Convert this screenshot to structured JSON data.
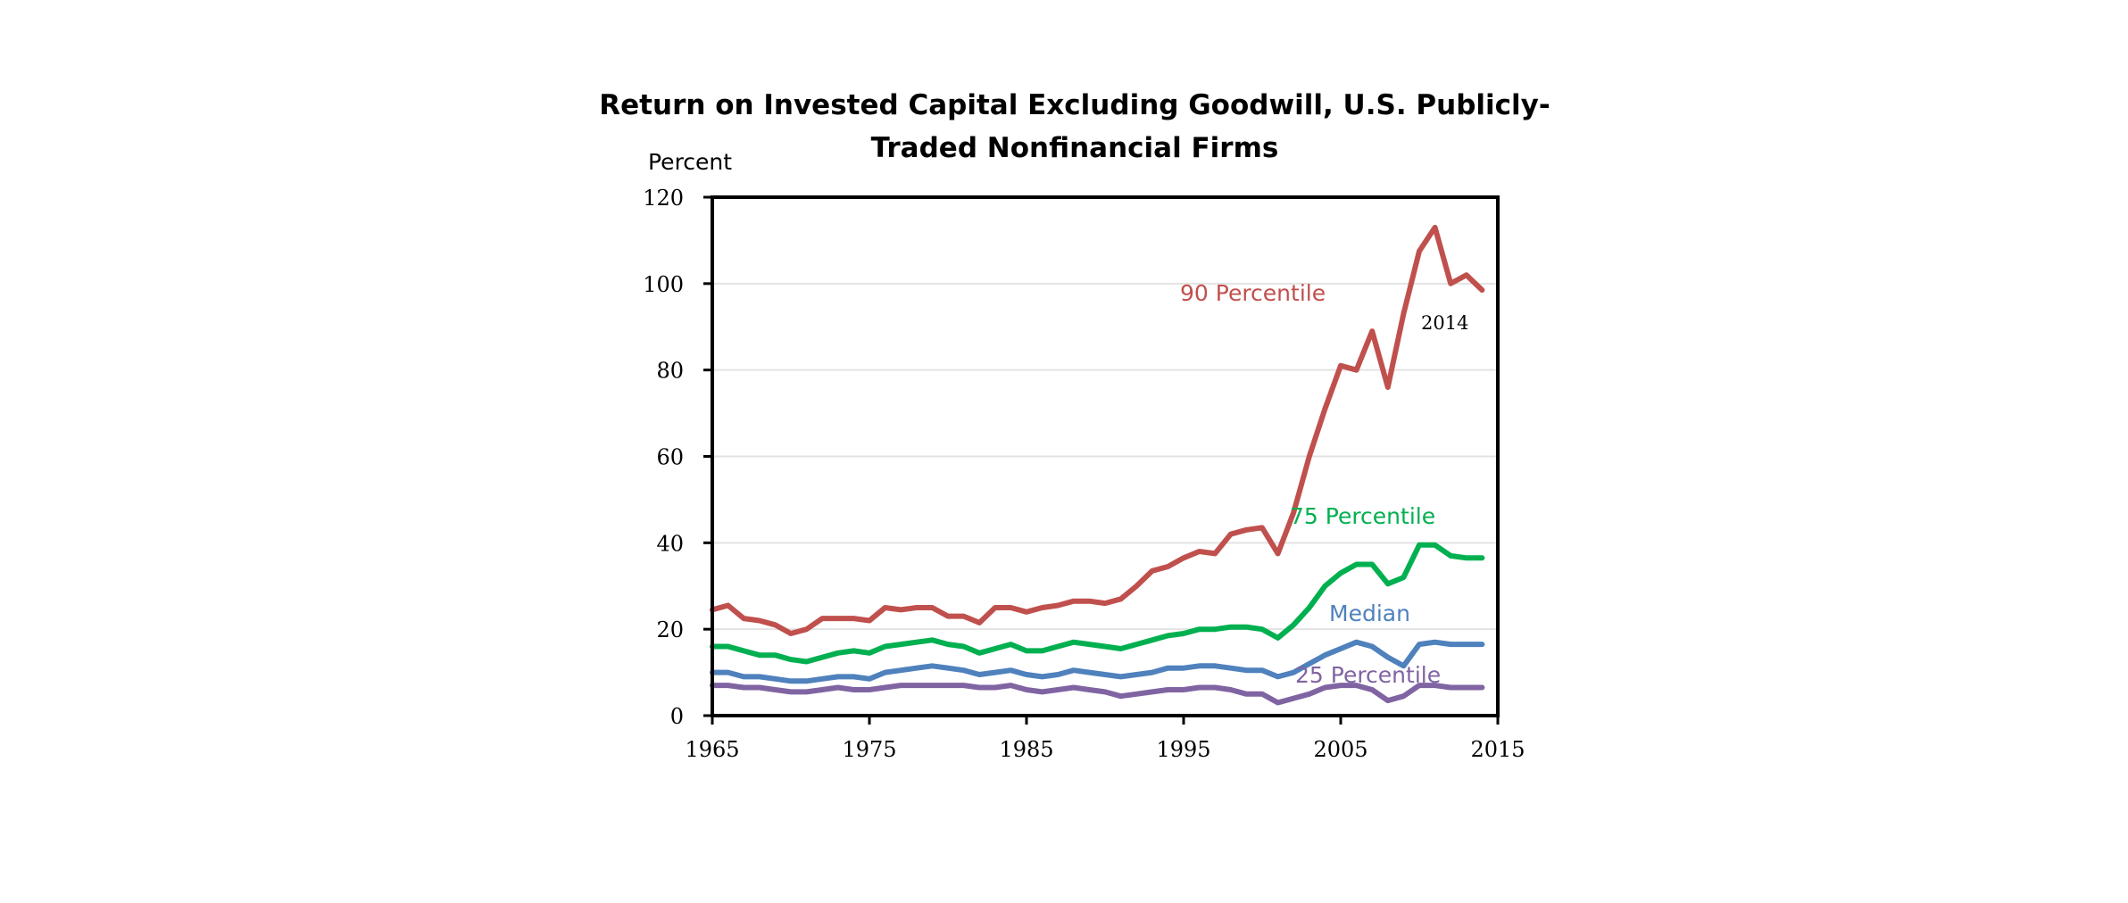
{
  "chart_data": {
    "type": "line",
    "title_line1": "Return on Invested Capital Excluding Goodwill, U.S. Publicly-",
    "title_line2": "Traded Nonfinancial Firms",
    "ylabel": "Percent",
    "xlabel": "",
    "xlim": [
      1965,
      2015
    ],
    "ylim": [
      0,
      120
    ],
    "yticks": [
      0,
      20,
      40,
      60,
      80,
      100,
      120
    ],
    "xticks": [
      1965,
      1975,
      1985,
      1995,
      2005,
      2015
    ],
    "grid": true,
    "annotation": "2014",
    "x": [
      1965,
      1966,
      1967,
      1968,
      1969,
      1970,
      1971,
      1972,
      1973,
      1974,
      1975,
      1976,
      1977,
      1978,
      1979,
      1980,
      1981,
      1982,
      1983,
      1984,
      1985,
      1986,
      1987,
      1988,
      1989,
      1990,
      1991,
      1992,
      1993,
      1994,
      1995,
      1996,
      1997,
      1998,
      1999,
      2000,
      2001,
      2002,
      2003,
      2004,
      2005,
      2006,
      2007,
      2008,
      2009,
      2010,
      2011,
      2012,
      2013,
      2014
    ],
    "series": [
      {
        "name": "90 Percentile",
        "color": "#C0504D",
        "values": [
          24.5,
          25.5,
          22.5,
          22,
          21,
          19,
          20,
          22.5,
          22.5,
          22.5,
          22,
          25,
          24.5,
          25,
          25,
          23,
          23,
          21.5,
          25,
          25,
          24,
          25,
          25.5,
          26.5,
          26.5,
          26,
          27,
          30,
          33.5,
          34.5,
          36.5,
          38,
          37.5,
          42,
          43,
          43.5,
          37.5,
          47,
          60,
          71,
          81,
          80,
          89,
          76,
          93,
          107.5,
          113,
          100,
          102,
          98.5
        ]
      },
      {
        "name": "75 Percentile",
        "color": "#00B050",
        "values": [
          16,
          16,
          15,
          14,
          14,
          13,
          12.5,
          13.5,
          14.5,
          15,
          14.5,
          16,
          16.5,
          17,
          17.5,
          16.5,
          16,
          14.5,
          15.5,
          16.5,
          15,
          15,
          16,
          17,
          16.5,
          16,
          15.5,
          16.5,
          17.5,
          18.5,
          19,
          20,
          20,
          20.5,
          20.5,
          20,
          18,
          21,
          25,
          30,
          33,
          35,
          35,
          30.5,
          32,
          39.5,
          39.5,
          37,
          36.5,
          36.5
        ]
      },
      {
        "name": "Median",
        "color": "#4F81BD",
        "values": [
          10,
          10,
          9,
          9,
          8.5,
          8,
          8,
          8.5,
          9,
          9,
          8.5,
          10,
          10.5,
          11,
          11.5,
          11,
          10.5,
          9.5,
          10,
          10.5,
          9.5,
          9,
          9.5,
          10.5,
          10,
          9.5,
          9,
          9.5,
          10,
          11,
          11,
          11.5,
          11.5,
          11,
          10.5,
          10.5,
          9,
          10,
          12,
          14,
          15.5,
          17,
          16,
          13.5,
          11.5,
          16.5,
          17,
          16.5,
          16.5,
          16.5
        ]
      },
      {
        "name": "25 Percentile",
        "color": "#8064A2",
        "values": [
          7,
          7,
          6.5,
          6.5,
          6,
          5.5,
          5.5,
          6,
          6.5,
          6,
          6,
          6.5,
          7,
          7,
          7,
          7,
          7,
          6.5,
          6.5,
          7,
          6,
          5.5,
          6,
          6.5,
          6,
          5.5,
          4.5,
          5,
          5.5,
          6,
          6,
          6.5,
          6.5,
          6,
          5,
          5,
          3,
          4,
          5,
          6.5,
          7,
          7,
          6,
          3.5,
          4.5,
          7,
          7,
          6.5,
          6.5,
          6.5
        ]
      }
    ]
  }
}
